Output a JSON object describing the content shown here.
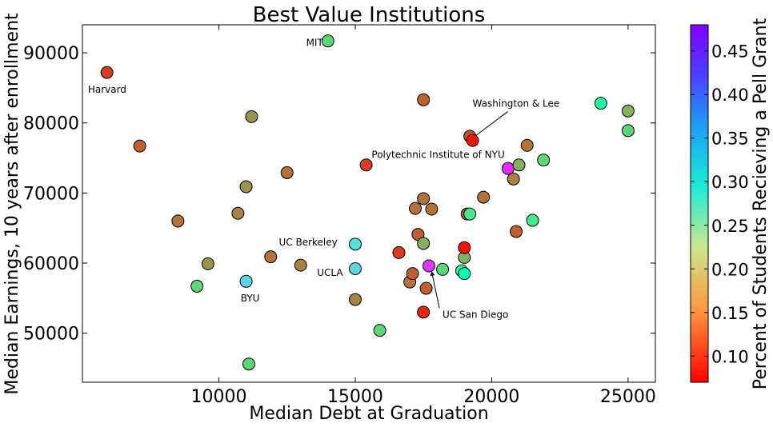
{
  "chart_data": {
    "type": "scatter",
    "title": "Best Value Institutions",
    "xlabel": "Median Debt at Graduation",
    "ylabel": "Median Earnings, 10 years after enrollment",
    "xlim": [
      5000,
      26000
    ],
    "ylim": [
      43000,
      94000
    ],
    "xticks": [
      10000,
      15000,
      20000,
      25000
    ],
    "yticks": [
      50000,
      60000,
      70000,
      80000,
      90000
    ],
    "grid": false,
    "colorbar": {
      "label": "Percent of Students Recieving a Pell Grant",
      "range": [
        0.07,
        0.48
      ],
      "ticks": [
        0.1,
        0.15,
        0.2,
        0.25,
        0.3,
        0.35,
        0.4,
        0.45
      ],
      "tick_labels": [
        "0.10",
        "0.15",
        "0.20",
        "0.25",
        "0.30",
        "0.35",
        "0.40",
        "0.45"
      ],
      "colormap": "rainbow"
    },
    "points": [
      {
        "x": 5900,
        "y": 87200,
        "c": 0.1
      },
      {
        "x": 14000,
        "y": 91700,
        "c": 0.2
      },
      {
        "x": 7100,
        "y": 76700,
        "c": 0.12
      },
      {
        "x": 8500,
        "y": 66000,
        "c": 0.13
      },
      {
        "x": 9200,
        "y": 56700,
        "c": 0.2
      },
      {
        "x": 9600,
        "y": 59900,
        "c": 0.15
      },
      {
        "x": 10700,
        "y": 67100,
        "c": 0.14
      },
      {
        "x": 11000,
        "y": 70900,
        "c": 0.15
      },
      {
        "x": 11000,
        "y": 57400,
        "c": 0.35
      },
      {
        "x": 11200,
        "y": 80900,
        "c": 0.15
      },
      {
        "x": 11100,
        "y": 45600,
        "c": 0.2
      },
      {
        "x": 11900,
        "y": 60900,
        "c": 0.13
      },
      {
        "x": 12500,
        "y": 72900,
        "c": 0.13
      },
      {
        "x": 13000,
        "y": 59700,
        "c": 0.14
      },
      {
        "x": 15000,
        "y": 62700,
        "c": 0.34
      },
      {
        "x": 15000,
        "y": 59200,
        "c": 0.35
      },
      {
        "x": 15000,
        "y": 54800,
        "c": 0.14
      },
      {
        "x": 15400,
        "y": 74000,
        "c": 0.1
      },
      {
        "x": 15900,
        "y": 50400,
        "c": 0.2
      },
      {
        "x": 16600,
        "y": 61500,
        "c": 0.1
      },
      {
        "x": 17000,
        "y": 57300,
        "c": 0.13
      },
      {
        "x": 17100,
        "y": 58500,
        "c": 0.12
      },
      {
        "x": 17200,
        "y": 67800,
        "c": 0.13
      },
      {
        "x": 17300,
        "y": 64100,
        "c": 0.12
      },
      {
        "x": 17500,
        "y": 83300,
        "c": 0.12
      },
      {
        "x": 17500,
        "y": 69200,
        "c": 0.13
      },
      {
        "x": 17500,
        "y": 62800,
        "c": 0.17
      },
      {
        "x": 17600,
        "y": 56400,
        "c": 0.12
      },
      {
        "x": 17500,
        "y": 53000,
        "c": 0.09
      },
      {
        "x": 17800,
        "y": 67700,
        "c": 0.13
      },
      {
        "x": 17700,
        "y": 59600,
        "c": 0.45
      },
      {
        "x": 18200,
        "y": 59100,
        "c": 0.2
      },
      {
        "x": 18900,
        "y": 58900,
        "c": 0.24
      },
      {
        "x": 19000,
        "y": 58500,
        "c": 0.27
      },
      {
        "x": 19000,
        "y": 60800,
        "c": 0.17
      },
      {
        "x": 19000,
        "y": 62200,
        "c": 0.08
      },
      {
        "x": 19100,
        "y": 67000,
        "c": 0.11
      },
      {
        "x": 19200,
        "y": 67000,
        "c": 0.22
      },
      {
        "x": 19200,
        "y": 78100,
        "c": 0.11
      },
      {
        "x": 19300,
        "y": 77500,
        "c": 0.08
      },
      {
        "x": 19700,
        "y": 69400,
        "c": 0.13
      },
      {
        "x": 20600,
        "y": 73500,
        "c": 0.46
      },
      {
        "x": 20800,
        "y": 72000,
        "c": 0.14
      },
      {
        "x": 20900,
        "y": 64500,
        "c": 0.12
      },
      {
        "x": 21000,
        "y": 74000,
        "c": 0.17
      },
      {
        "x": 21300,
        "y": 76800,
        "c": 0.13
      },
      {
        "x": 21500,
        "y": 66100,
        "c": 0.22
      },
      {
        "x": 21900,
        "y": 74700,
        "c": 0.2
      },
      {
        "x": 24000,
        "y": 82800,
        "c": 0.25
      },
      {
        "x": 25000,
        "y": 81700,
        "c": 0.17
      },
      {
        "x": 25000,
        "y": 78900,
        "c": 0.2
      }
    ],
    "annotations": [
      {
        "text": "MIT",
        "x": 13200,
        "y": 91000
      },
      {
        "text": "Harvard",
        "x": 5200,
        "y": 84300
      },
      {
        "text": "Washington & Lee",
        "x": 19300,
        "y": 82300,
        "arrow_to": [
          19250,
          77700
        ]
      },
      {
        "text": "Polytechnic Institute of NYU",
        "x": 15600,
        "y": 75000,
        "arrow_to": [
          20550,
          73500
        ]
      },
      {
        "text": "UC Berkeley",
        "x": 12200,
        "y": 62500
      },
      {
        "text": "UCLA",
        "x": 13600,
        "y": 58200
      },
      {
        "text": "BYU",
        "x": 10800,
        "y": 54500
      },
      {
        "text": "UC San Diego",
        "x": 18200,
        "y": 52200,
        "arrow_to": [
          17800,
          58800
        ]
      }
    ]
  }
}
